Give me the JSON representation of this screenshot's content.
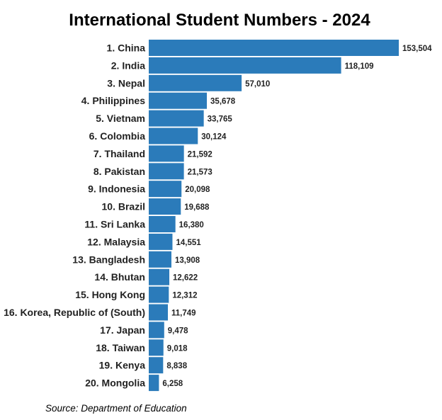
{
  "chart_data": {
    "type": "bar",
    "orientation": "horizontal",
    "title": "International Student Numbers - 2024",
    "source": "Source: Department of Education",
    "bar_color": "#2b7bba",
    "categories": [
      "1. China",
      "2. India",
      "3. Nepal",
      "4. Philippines",
      "5. Vietnam",
      "6. Colombia",
      "7. Thailand",
      "8. Pakistan",
      "9. Indonesia",
      "10. Brazil",
      "11. Sri Lanka",
      "12. Malaysia",
      "13. Bangladesh",
      "14. Bhutan",
      "15. Hong Kong",
      "16. Korea, Republic of (South)",
      "17. Japan",
      "18. Taiwan",
      "19. Kenya",
      "20. Mongolia"
    ],
    "values": [
      153504,
      118109,
      57010,
      35678,
      33765,
      30124,
      21592,
      21573,
      20098,
      19688,
      16380,
      14551,
      13908,
      12622,
      12312,
      11749,
      9478,
      9018,
      8838,
      6258
    ],
    "value_labels": [
      "153,504",
      "118,109",
      "57,010",
      "35,678",
      "33,765",
      "30,124",
      "21,592",
      "21,573",
      "20,098",
      "19,688",
      "16,380",
      "14,551",
      "13,908",
      "12,622",
      "12,312",
      "11,749",
      "9,478",
      "9,018",
      "8,838",
      "6,258"
    ],
    "xlim": [
      0,
      153504
    ],
    "grid": false,
    "legend": "none"
  }
}
